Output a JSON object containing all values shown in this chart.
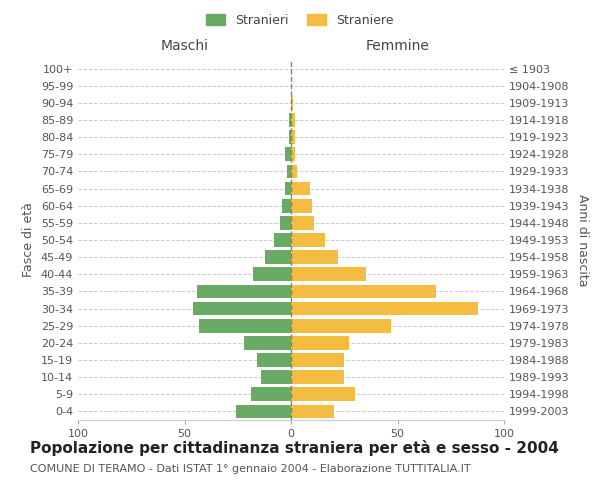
{
  "age_groups": [
    "0-4",
    "5-9",
    "10-14",
    "15-19",
    "20-24",
    "25-29",
    "30-34",
    "35-39",
    "40-44",
    "45-49",
    "50-54",
    "55-59",
    "60-64",
    "65-69",
    "70-74",
    "75-79",
    "80-84",
    "85-89",
    "90-94",
    "95-99",
    "100+"
  ],
  "birth_years": [
    "1999-2003",
    "1994-1998",
    "1989-1993",
    "1984-1988",
    "1979-1983",
    "1974-1978",
    "1969-1973",
    "1964-1968",
    "1959-1963",
    "1954-1958",
    "1949-1953",
    "1944-1948",
    "1939-1943",
    "1934-1938",
    "1929-1933",
    "1924-1928",
    "1919-1923",
    "1914-1918",
    "1909-1913",
    "1904-1908",
    "≤ 1903"
  ],
  "males": [
    26,
    19,
    14,
    16,
    22,
    43,
    46,
    44,
    18,
    12,
    8,
    5,
    4,
    3,
    2,
    3,
    1,
    1,
    0,
    0,
    0
  ],
  "females": [
    20,
    30,
    25,
    25,
    27,
    47,
    88,
    68,
    35,
    22,
    16,
    11,
    10,
    9,
    3,
    2,
    2,
    2,
    1,
    0,
    0
  ],
  "male_color": "#6aaa64",
  "female_color": "#f5bc42",
  "background_color": "#ffffff",
  "grid_color": "#cccccc",
  "center_line_color": "#888855",
  "xlim": 100,
  "title": "Popolazione per cittadinanza straniera per età e sesso - 2004",
  "subtitle": "COMUNE DI TERAMO - Dati ISTAT 1° gennaio 2004 - Elaborazione TUTTITALIA.IT",
  "ylabel_left": "Fasce di età",
  "ylabel_right": "Anni di nascita",
  "header_left": "Maschi",
  "header_right": "Femmine",
  "legend_males": "Stranieri",
  "legend_females": "Straniere",
  "title_fontsize": 11,
  "subtitle_fontsize": 8,
  "label_fontsize": 9,
  "tick_fontsize": 8
}
